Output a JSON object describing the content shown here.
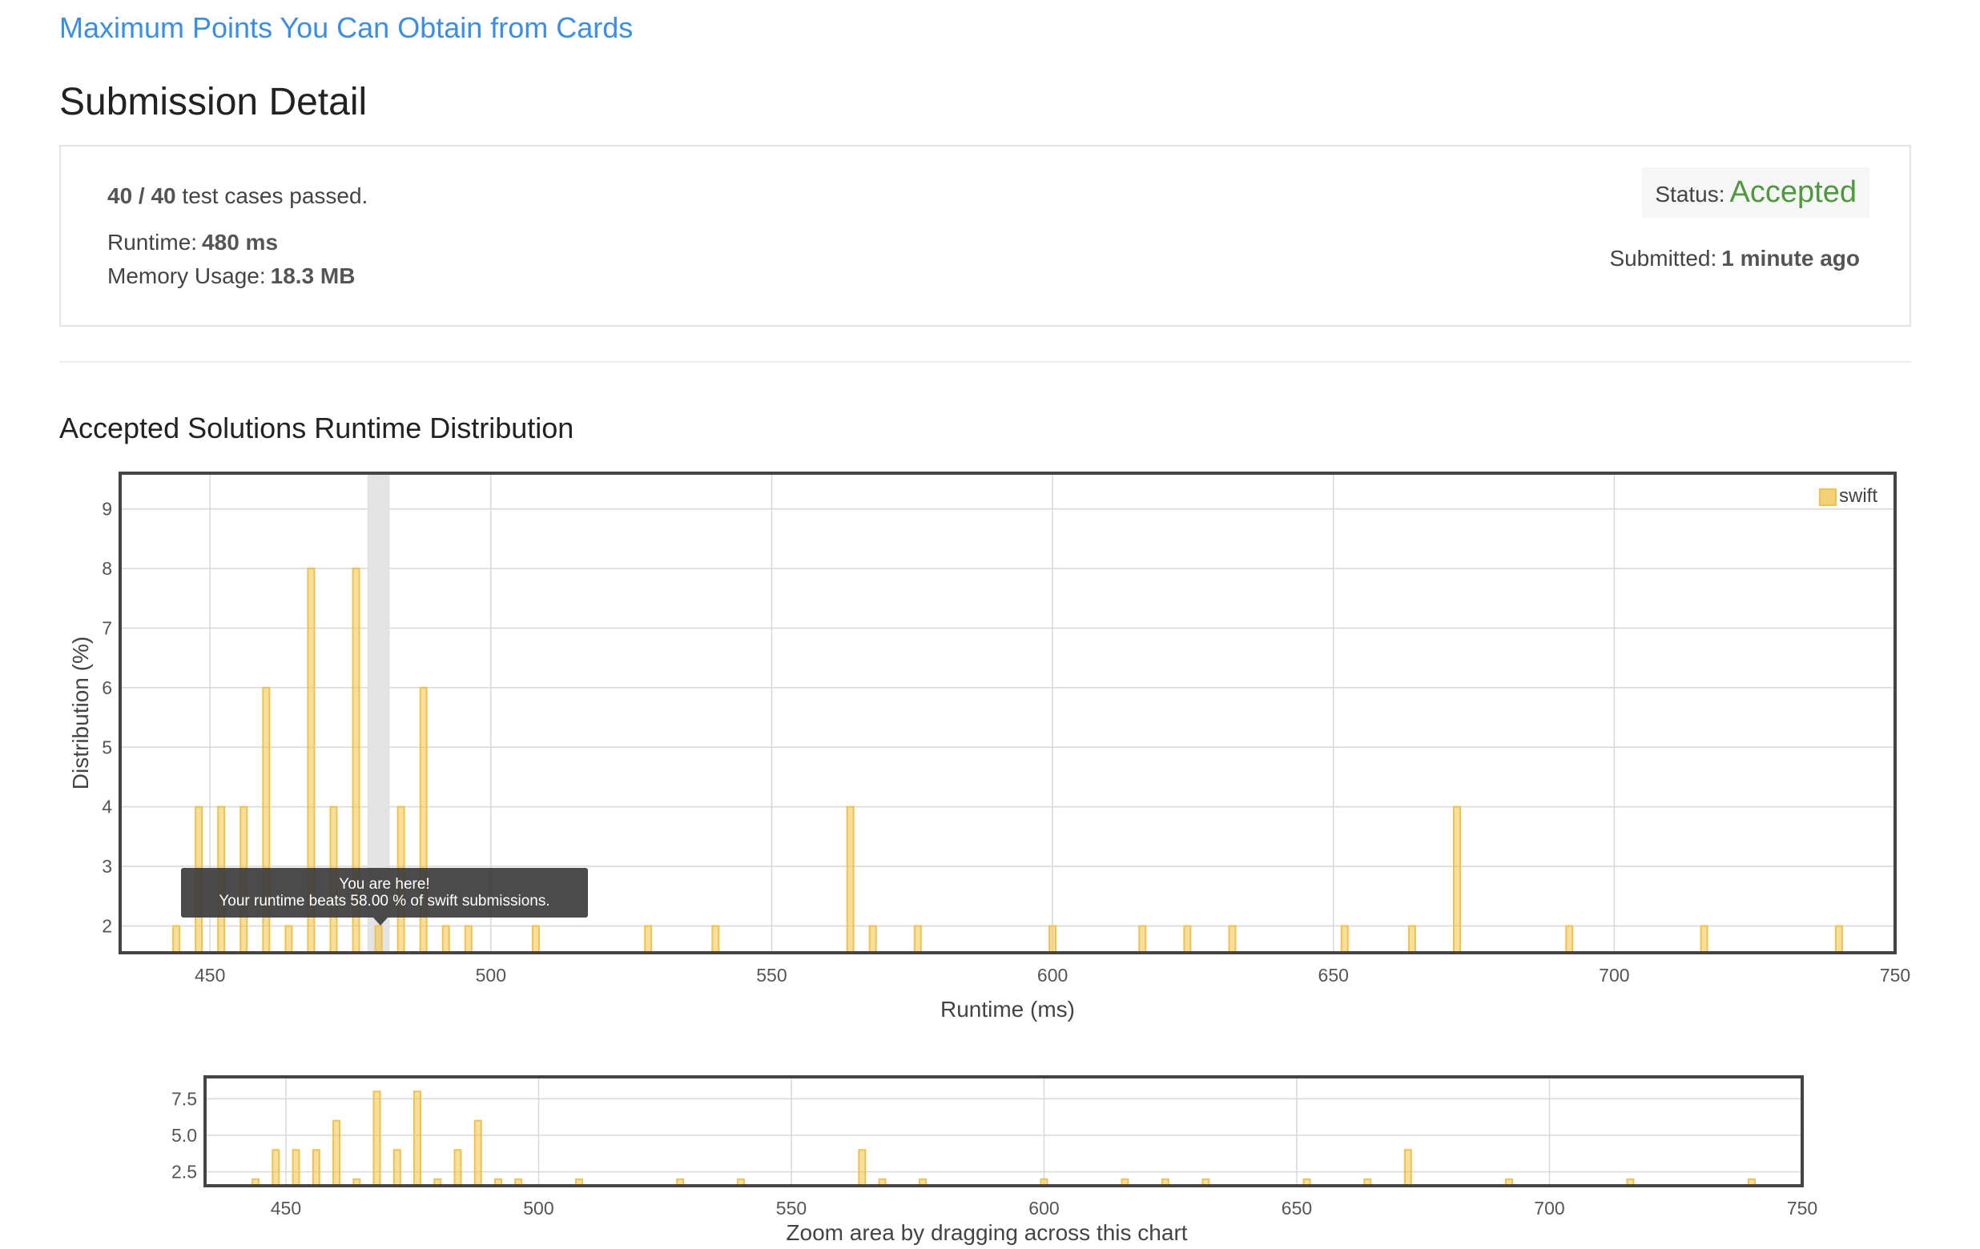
{
  "problem": {
    "title": "Maximum Points You Can Obtain from Cards"
  },
  "page": {
    "heading": "Submission Detail"
  },
  "detail": {
    "cases_passed": "40 / 40",
    "cases_suffix": "test cases passed.",
    "runtime_label": "Runtime:",
    "runtime_value": "480 ms",
    "memory_label": "Memory Usage:",
    "memory_value": "18.3 MB",
    "status_label": "Status:",
    "status_value": "Accepted",
    "status_color": "#4c9a3d",
    "submitted_label": "Submitted:",
    "submitted_value": "1 minute ago"
  },
  "distribution": {
    "section_title": "Accepted Solutions Runtime Distribution",
    "tooltip_line1": "You are here!",
    "tooltip_line2": "Your runtime beats 58.00 % of swift submissions.",
    "zoom_caption": "Zoom area by dragging across this chart"
  },
  "chart_data": [
    {
      "type": "bar",
      "xlabel": "Runtime (ms)",
      "ylabel": "Distribution (%)",
      "xlim": [
        434,
        750
      ],
      "ylim": [
        1.55,
        9.6
      ],
      "x_ticks": [
        450,
        500,
        550,
        600,
        650,
        700,
        750
      ],
      "y_ticks": [
        2,
        3,
        4,
        5,
        6,
        7,
        8,
        9
      ],
      "grid": true,
      "legend": "top-right",
      "highlight_x": 480,
      "bar_color": "#f0c24a",
      "series": [
        {
          "name": "swift",
          "x": [
            444,
            448,
            452,
            456,
            460,
            464,
            468,
            472,
            476,
            480,
            484,
            488,
            492,
            496,
            508,
            528,
            540,
            564,
            568,
            576,
            600,
            616,
            624,
            632,
            652,
            664,
            672,
            692,
            716,
            740
          ],
          "y": [
            2,
            4,
            4,
            4,
            6,
            2,
            8,
            4,
            8,
            2,
            4,
            6,
            2,
            2,
            2,
            2,
            2,
            4,
            2,
            2,
            2,
            2,
            2,
            2,
            2,
            2,
            4,
            2,
            2,
            2
          ]
        }
      ]
    },
    {
      "type": "bar",
      "xlim": [
        434,
        750
      ],
      "ylim": [
        1.55,
        9.0
      ],
      "x_ticks": [
        450,
        500,
        550,
        600,
        650,
        700,
        750
      ],
      "y_ticks": [
        "2.5",
        "5.0",
        "7.5"
      ],
      "grid": true,
      "series": [
        {
          "x": [
            444,
            448,
            452,
            456,
            460,
            464,
            468,
            472,
            476,
            480,
            484,
            488,
            492,
            496,
            508,
            528,
            540,
            564,
            568,
            576,
            600,
            616,
            624,
            632,
            652,
            664,
            672,
            692,
            716,
            740
          ],
          "y": [
            2,
            4,
            4,
            4,
            6,
            2,
            8,
            4,
            8,
            2,
            4,
            6,
            2,
            2,
            2,
            2,
            2,
            4,
            2,
            2,
            2,
            2,
            2,
            2,
            2,
            2,
            4,
            2,
            2,
            2
          ]
        }
      ]
    }
  ]
}
